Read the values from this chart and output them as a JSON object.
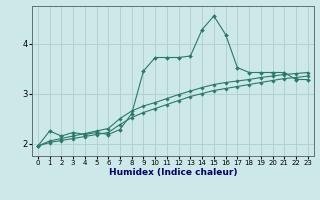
{
  "title": "",
  "xlabel": "Humidex (Indice chaleur)",
  "ylabel": "",
  "bg_color": "#cce8e8",
  "line_color": "#2a7a6a",
  "grid_color": "#b0cccc",
  "xlim": [
    -0.5,
    23.5
  ],
  "ylim": [
    1.75,
    4.75
  ],
  "yticks": [
    2,
    3,
    4
  ],
  "xticks": [
    0,
    1,
    2,
    3,
    4,
    5,
    6,
    7,
    8,
    9,
    10,
    11,
    12,
    13,
    14,
    15,
    16,
    17,
    18,
    19,
    20,
    21,
    22,
    23
  ],
  "line1_x": [
    0,
    1,
    2,
    3,
    4,
    5,
    6,
    7,
    8,
    9,
    10,
    11,
    12,
    13,
    14,
    15,
    16,
    17,
    18,
    19,
    20,
    21,
    22,
    23
  ],
  "line1_y": [
    1.95,
    2.25,
    2.15,
    2.22,
    2.18,
    2.22,
    2.18,
    2.28,
    2.6,
    3.45,
    3.72,
    3.72,
    3.72,
    3.75,
    4.28,
    4.55,
    4.18,
    3.52,
    3.42,
    3.42,
    3.42,
    3.42,
    3.28,
    3.28
  ],
  "line2_x": [
    0,
    1,
    2,
    3,
    4,
    5,
    6,
    7,
    8,
    9,
    10,
    11,
    12,
    13,
    14,
    15,
    16,
    17,
    18,
    19,
    20,
    21,
    22,
    23
  ],
  "line2_y": [
    1.95,
    2.05,
    2.1,
    2.15,
    2.2,
    2.25,
    2.3,
    2.5,
    2.65,
    2.75,
    2.82,
    2.9,
    2.98,
    3.05,
    3.12,
    3.18,
    3.22,
    3.25,
    3.28,
    3.32,
    3.35,
    3.38,
    3.4,
    3.42
  ],
  "line3_x": [
    0,
    1,
    2,
    3,
    4,
    5,
    6,
    7,
    8,
    9,
    10,
    11,
    12,
    13,
    14,
    15,
    16,
    17,
    18,
    19,
    20,
    21,
    22,
    23
  ],
  "line3_y": [
    1.95,
    2.02,
    2.06,
    2.1,
    2.14,
    2.18,
    2.22,
    2.38,
    2.52,
    2.62,
    2.7,
    2.78,
    2.86,
    2.94,
    3.0,
    3.06,
    3.1,
    3.14,
    3.18,
    3.22,
    3.26,
    3.3,
    3.32,
    3.35
  ]
}
